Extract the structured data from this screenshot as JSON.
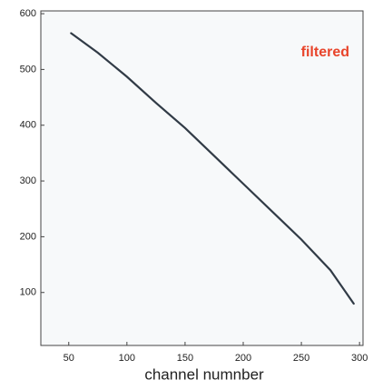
{
  "chart_data": {
    "type": "line",
    "x_label": "channel numnber",
    "annotation": "filtered",
    "annotation_color": "#e8442a",
    "series": [
      {
        "color": "#1b2632",
        "x": [
          52,
          75,
          100,
          125,
          150,
          175,
          200,
          225,
          250,
          275,
          295
        ],
        "values": [
          565,
          530,
          487,
          440,
          395,
          345,
          295,
          245,
          195,
          140,
          80
        ]
      }
    ],
    "xlim": [
      26,
      303
    ],
    "ylim": [
      5,
      605
    ],
    "xticks": [
      50,
      100,
      150,
      200,
      250,
      300
    ],
    "yticks": [
      100,
      200,
      300,
      400,
      500,
      600
    ],
    "grid": false
  }
}
